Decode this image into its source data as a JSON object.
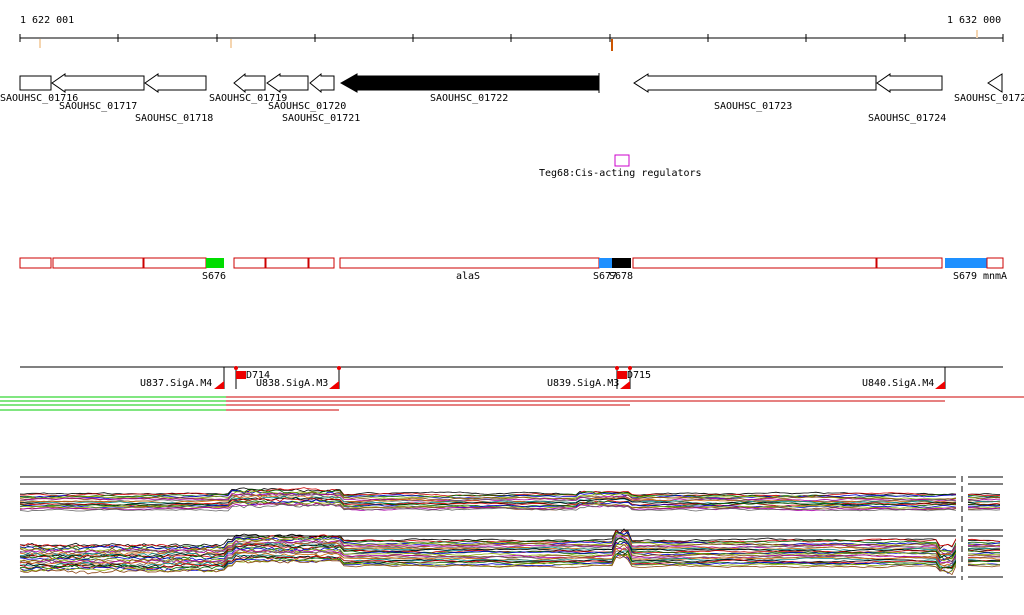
{
  "ruler": {
    "start_label": "1 622 001",
    "end_label": "1 632 000",
    "start_position": 1622001,
    "end_position": 1632000
  },
  "genes": [
    {
      "name": "SAOUHSC_01716",
      "strand": "+"
    },
    {
      "name": "SAOUHSC_01717",
      "strand": "-"
    },
    {
      "name": "SAOUHSC_01718",
      "strand": "-"
    },
    {
      "name": "SAOUHSC_01719",
      "strand": "-"
    },
    {
      "name": "SAOUHSC_01720",
      "strand": "-"
    },
    {
      "name": "SAOUHSC_01721",
      "strand": "-"
    },
    {
      "name": "SAOUHSC_01722",
      "strand": "-",
      "highlighted": true
    },
    {
      "name": "SAOUHSC_01723",
      "strand": "-"
    },
    {
      "name": "SAOUHSC_01724",
      "strand": "-"
    },
    {
      "name": "SAOUHSC_0172",
      "strand": "-"
    }
  ],
  "regulator": {
    "label": "Teg68:Cis-acting regulators",
    "color": "#cc00cc"
  },
  "segments_track": {
    "labels": [
      "alaS",
      "S676",
      "S677",
      "S678",
      "S679",
      "mnmA"
    ],
    "colors": {
      "outline": "#cc0000",
      "green": "#00dd00",
      "blue": "#1e90ff",
      "black": "#000000"
    }
  },
  "transcription_units": {
    "units": [
      "U837.SigA.M4",
      "U838.SigA.M3",
      "U839.SigA.M3",
      "U840.SigA.M4"
    ],
    "downstream": [
      "D714",
      "D715"
    ],
    "marker_color": "#ee0000"
  },
  "expression": {
    "line_colors": [
      "#000000",
      "#cc0000",
      "#006600",
      "#0000cc",
      "#88aa00",
      "#8b4513",
      "#aa00aa",
      "#666666",
      "#cc6600",
      "#008b8b"
    ]
  }
}
